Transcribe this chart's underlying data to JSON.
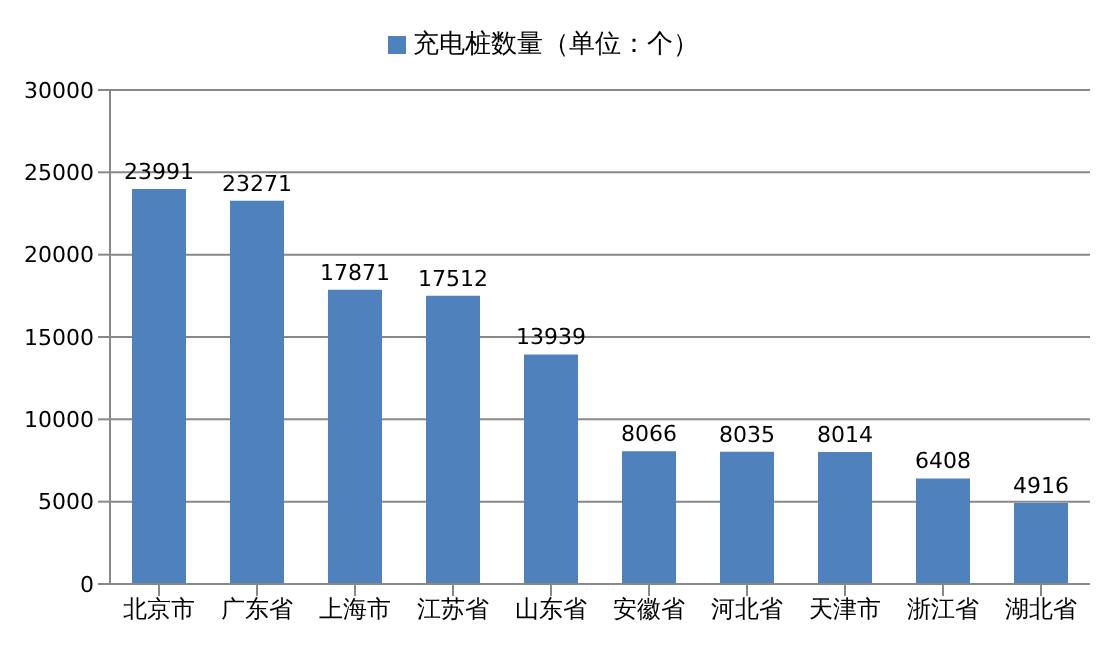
{
  "chart_data": {
    "type": "bar",
    "categories": [
      "北京市",
      "广东省",
      "上海市",
      "江苏省",
      "山东省",
      "安徽省",
      "河北省",
      "天津市",
      "浙江省",
      "湖北省"
    ],
    "series": [
      {
        "name": "充电桩数量（单位：个）",
        "color": "#4f81bd",
        "values": [
          23991,
          23271,
          17871,
          17512,
          13939,
          8066,
          8035,
          8014,
          6408,
          4916
        ]
      }
    ],
    "ylim": [
      0,
      30000
    ],
    "yticks": [
      0,
      5000,
      10000,
      15000,
      20000,
      25000,
      30000
    ],
    "grid": "y",
    "legend": "top",
    "data_labels": true
  }
}
